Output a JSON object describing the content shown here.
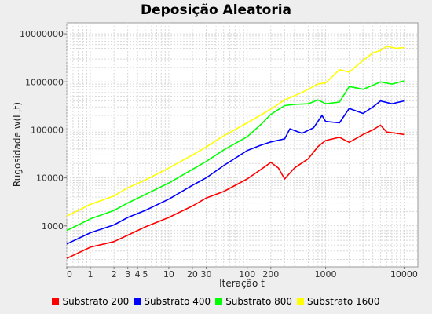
{
  "chart_data": {
    "type": "line",
    "title": "Deposição Aleatoria",
    "xlabel": "Iteração t",
    "ylabel": "Rugosidade w(L,t)",
    "x_scale": "log",
    "y_scale": "log",
    "xlim": [
      0.5,
      15000
    ],
    "ylim": [
      140,
      17000000
    ],
    "grid": true,
    "legend_position": "bottom",
    "xticks": [
      {
        "v": 0.5,
        "label": "0"
      },
      {
        "v": 1,
        "label": "1"
      },
      {
        "v": 2,
        "label": "2"
      },
      {
        "v": 3,
        "label": "3"
      },
      {
        "v": 4,
        "label": "4"
      },
      {
        "v": 5,
        "label": "5"
      },
      {
        "v": 10,
        "label": "10"
      },
      {
        "v": 20,
        "label": "20"
      },
      {
        "v": 30,
        "label": "30"
      },
      {
        "v": 100,
        "label": "100"
      },
      {
        "v": 200,
        "label": "200"
      },
      {
        "v": 1000,
        "label": "1000"
      },
      {
        "v": 10000,
        "label": "10000"
      }
    ],
    "yticks": [
      {
        "v": 1000,
        "label": "1000"
      },
      {
        "v": 10000,
        "label": "10000"
      },
      {
        "v": 100000,
        "label": "100000"
      },
      {
        "v": 1000000,
        "label": "1000000"
      },
      {
        "v": 10000000,
        "label": "10000000"
      }
    ],
    "series": [
      {
        "name": "Substrato 200",
        "color": "#ff0000",
        "points": [
          [
            0.5,
            210
          ],
          [
            1,
            360
          ],
          [
            2,
            470
          ],
          [
            3,
            640
          ],
          [
            5,
            950
          ],
          [
            10,
            1500
          ],
          [
            20,
            2600
          ],
          [
            30,
            3800
          ],
          [
            50,
            5200
          ],
          [
            100,
            9500
          ],
          [
            150,
            15000
          ],
          [
            200,
            21000
          ],
          [
            250,
            16000
          ],
          [
            300,
            9500
          ],
          [
            400,
            16000
          ],
          [
            600,
            25000
          ],
          [
            800,
            45000
          ],
          [
            1000,
            60000
          ],
          [
            1500,
            70000
          ],
          [
            2000,
            55000
          ],
          [
            3000,
            80000
          ],
          [
            4000,
            100000
          ],
          [
            5000,
            125000
          ],
          [
            6000,
            90000
          ],
          [
            8000,
            85000
          ],
          [
            10000,
            80000
          ]
        ]
      },
      {
        "name": "Substrato 400",
        "color": "#0000ff",
        "points": [
          [
            0.5,
            420
          ],
          [
            1,
            720
          ],
          [
            2,
            1050
          ],
          [
            3,
            1500
          ],
          [
            5,
            2100
          ],
          [
            10,
            3600
          ],
          [
            20,
            7000
          ],
          [
            30,
            10000
          ],
          [
            50,
            18000
          ],
          [
            100,
            37000
          ],
          [
            150,
            48000
          ],
          [
            200,
            56000
          ],
          [
            300,
            65000
          ],
          [
            350,
            105000
          ],
          [
            500,
            85000
          ],
          [
            700,
            110000
          ],
          [
            900,
            200000
          ],
          [
            1000,
            150000
          ],
          [
            1500,
            140000
          ],
          [
            2000,
            280000
          ],
          [
            3000,
            220000
          ],
          [
            4000,
            300000
          ],
          [
            5000,
            400000
          ],
          [
            7000,
            350000
          ],
          [
            10000,
            400000
          ]
        ]
      },
      {
        "name": "Substrato 800",
        "color": "#00ff00",
        "points": [
          [
            0.5,
            800
          ],
          [
            1,
            1400
          ],
          [
            2,
            2100
          ],
          [
            3,
            3000
          ],
          [
            5,
            4500
          ],
          [
            10,
            7800
          ],
          [
            20,
            15000
          ],
          [
            30,
            22000
          ],
          [
            50,
            38000
          ],
          [
            100,
            72000
          ],
          [
            150,
            130000
          ],
          [
            200,
            210000
          ],
          [
            300,
            320000
          ],
          [
            400,
            340000
          ],
          [
            600,
            350000
          ],
          [
            800,
            420000
          ],
          [
            1000,
            350000
          ],
          [
            1500,
            380000
          ],
          [
            2000,
            800000
          ],
          [
            3000,
            700000
          ],
          [
            4000,
            850000
          ],
          [
            5000,
            1000000
          ],
          [
            7000,
            900000
          ],
          [
            10000,
            1050000
          ]
        ]
      },
      {
        "name": "Substrato 1600",
        "color": "#ffff00",
        "points": [
          [
            0.5,
            1600
          ],
          [
            1,
            2800
          ],
          [
            2,
            4200
          ],
          [
            3,
            6200
          ],
          [
            5,
            9000
          ],
          [
            10,
            16000
          ],
          [
            20,
            30000
          ],
          [
            30,
            44000
          ],
          [
            50,
            75000
          ],
          [
            100,
            140000
          ],
          [
            200,
            270000
          ],
          [
            300,
            420000
          ],
          [
            500,
            600000
          ],
          [
            800,
            900000
          ],
          [
            1000,
            950000
          ],
          [
            1500,
            1800000
          ],
          [
            2000,
            1600000
          ],
          [
            3000,
            2800000
          ],
          [
            4000,
            4000000
          ],
          [
            5000,
            4500000
          ],
          [
            6000,
            5500000
          ],
          [
            8000,
            5000000
          ],
          [
            10000,
            5200000
          ]
        ]
      }
    ]
  }
}
